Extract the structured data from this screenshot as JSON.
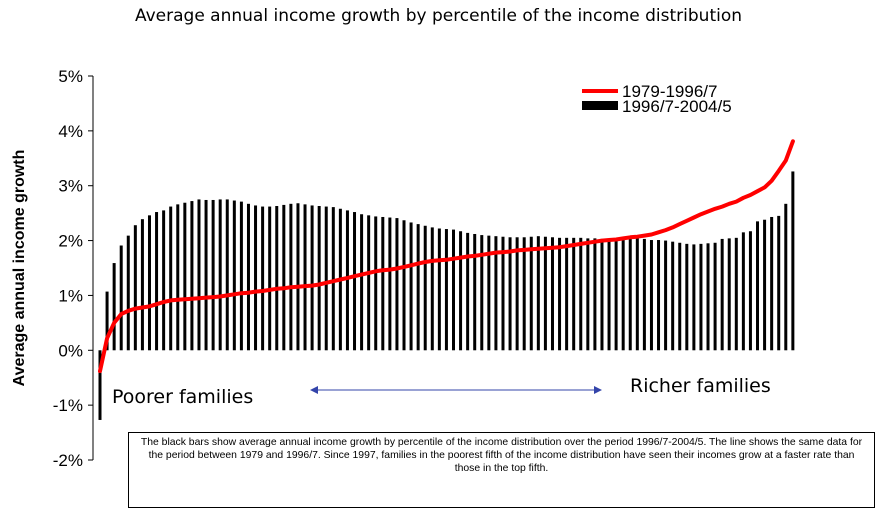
{
  "chart_data": {
    "type": "bar",
    "title": "Average annual income growth by percentile of the income distribution",
    "xlabel": "",
    "ylabel": "Average annual income growth",
    "ylim": [
      -2,
      5
    ],
    "yticks": [
      "-2%",
      "-1%",
      "0%",
      "1%",
      "2%",
      "3%",
      "4%",
      "5%"
    ],
    "ytick_values": [
      -2,
      -1,
      0,
      1,
      2,
      3,
      4,
      5
    ],
    "grid": false,
    "legend_position": "top-right",
    "annotations": {
      "left": "Poorer families",
      "right": "Richer families",
      "note": "The black bars show average annual income growth by percentile of the income distribution over the period 1996/7-2004/5.  The line shows the same data for the period between 1979 and 1996/7.  Since 1997, families in the poorest fifth of the income distribution have seen their incomes grow at a faster rate than those in the top fifth."
    },
    "x": [
      1,
      2,
      3,
      4,
      5,
      6,
      7,
      8,
      9,
      10,
      11,
      12,
      13,
      14,
      15,
      16,
      17,
      18,
      19,
      20,
      21,
      22,
      23,
      24,
      25,
      26,
      27,
      28,
      29,
      30,
      31,
      32,
      33,
      34,
      35,
      36,
      37,
      38,
      39,
      40,
      41,
      42,
      43,
      44,
      45,
      46,
      47,
      48,
      49,
      50,
      51,
      52,
      53,
      54,
      55,
      56,
      57,
      58,
      59,
      60,
      61,
      62,
      63,
      64,
      65,
      66,
      67,
      68,
      69,
      70,
      71,
      72,
      73,
      74,
      75,
      76,
      77,
      78,
      79,
      80,
      81,
      82,
      83,
      84,
      85,
      86,
      87,
      88,
      89,
      90,
      91,
      92,
      93,
      94,
      95,
      96,
      97,
      98,
      99
    ],
    "series": [
      {
        "name": "1996/7-2004/5",
        "kind": "bar",
        "color": "#000000",
        "values": [
          -1.27,
          1.07,
          1.59,
          1.91,
          2.09,
          2.28,
          2.39,
          2.46,
          2.52,
          2.55,
          2.62,
          2.66,
          2.69,
          2.72,
          2.75,
          2.74,
          2.74,
          2.75,
          2.75,
          2.73,
          2.71,
          2.67,
          2.64,
          2.62,
          2.62,
          2.63,
          2.65,
          2.67,
          2.68,
          2.66,
          2.64,
          2.63,
          2.62,
          2.61,
          2.58,
          2.55,
          2.52,
          2.48,
          2.46,
          2.44,
          2.43,
          2.42,
          2.41,
          2.37,
          2.33,
          2.3,
          2.27,
          2.24,
          2.22,
          2.21,
          2.2,
          2.17,
          2.14,
          2.12,
          2.1,
          2.09,
          2.08,
          2.07,
          2.06,
          2.06,
          2.06,
          2.07,
          2.08,
          2.07,
          2.06,
          2.05,
          2.05,
          2.05,
          2.05,
          2.04,
          2.04,
          2.03,
          2.03,
          2.02,
          2.02,
          2.03,
          2.05,
          2.03,
          2.01,
          2.01,
          2.0,
          1.98,
          1.96,
          1.94,
          1.93,
          1.94,
          1.95,
          1.96,
          2.03,
          2.04,
          2.05,
          2.15,
          2.17,
          2.35,
          2.38,
          2.43,
          2.45,
          2.67,
          3.26
        ]
      },
      {
        "name": "1979-1996/7",
        "kind": "line",
        "color": "#ff0000",
        "values": [
          -0.38,
          0.22,
          0.5,
          0.66,
          0.72,
          0.76,
          0.78,
          0.8,
          0.84,
          0.88,
          0.91,
          0.92,
          0.93,
          0.94,
          0.95,
          0.96,
          0.97,
          0.98,
          1.0,
          1.02,
          1.04,
          1.05,
          1.07,
          1.08,
          1.1,
          1.12,
          1.13,
          1.15,
          1.16,
          1.17,
          1.18,
          1.2,
          1.23,
          1.26,
          1.29,
          1.32,
          1.35,
          1.38,
          1.41,
          1.44,
          1.46,
          1.47,
          1.49,
          1.52,
          1.55,
          1.58,
          1.61,
          1.63,
          1.64,
          1.65,
          1.67,
          1.69,
          1.71,
          1.72,
          1.74,
          1.76,
          1.78,
          1.79,
          1.8,
          1.82,
          1.83,
          1.84,
          1.85,
          1.86,
          1.87,
          1.88,
          1.9,
          1.92,
          1.94,
          1.96,
          1.98,
          2.0,
          2.01,
          2.02,
          2.04,
          2.06,
          2.07,
          2.09,
          2.11,
          2.15,
          2.19,
          2.24,
          2.3,
          2.36,
          2.42,
          2.48,
          2.53,
          2.58,
          2.62,
          2.67,
          2.71,
          2.78,
          2.83,
          2.9,
          2.97,
          3.09,
          3.27,
          3.46,
          3.81
        ]
      }
    ]
  }
}
